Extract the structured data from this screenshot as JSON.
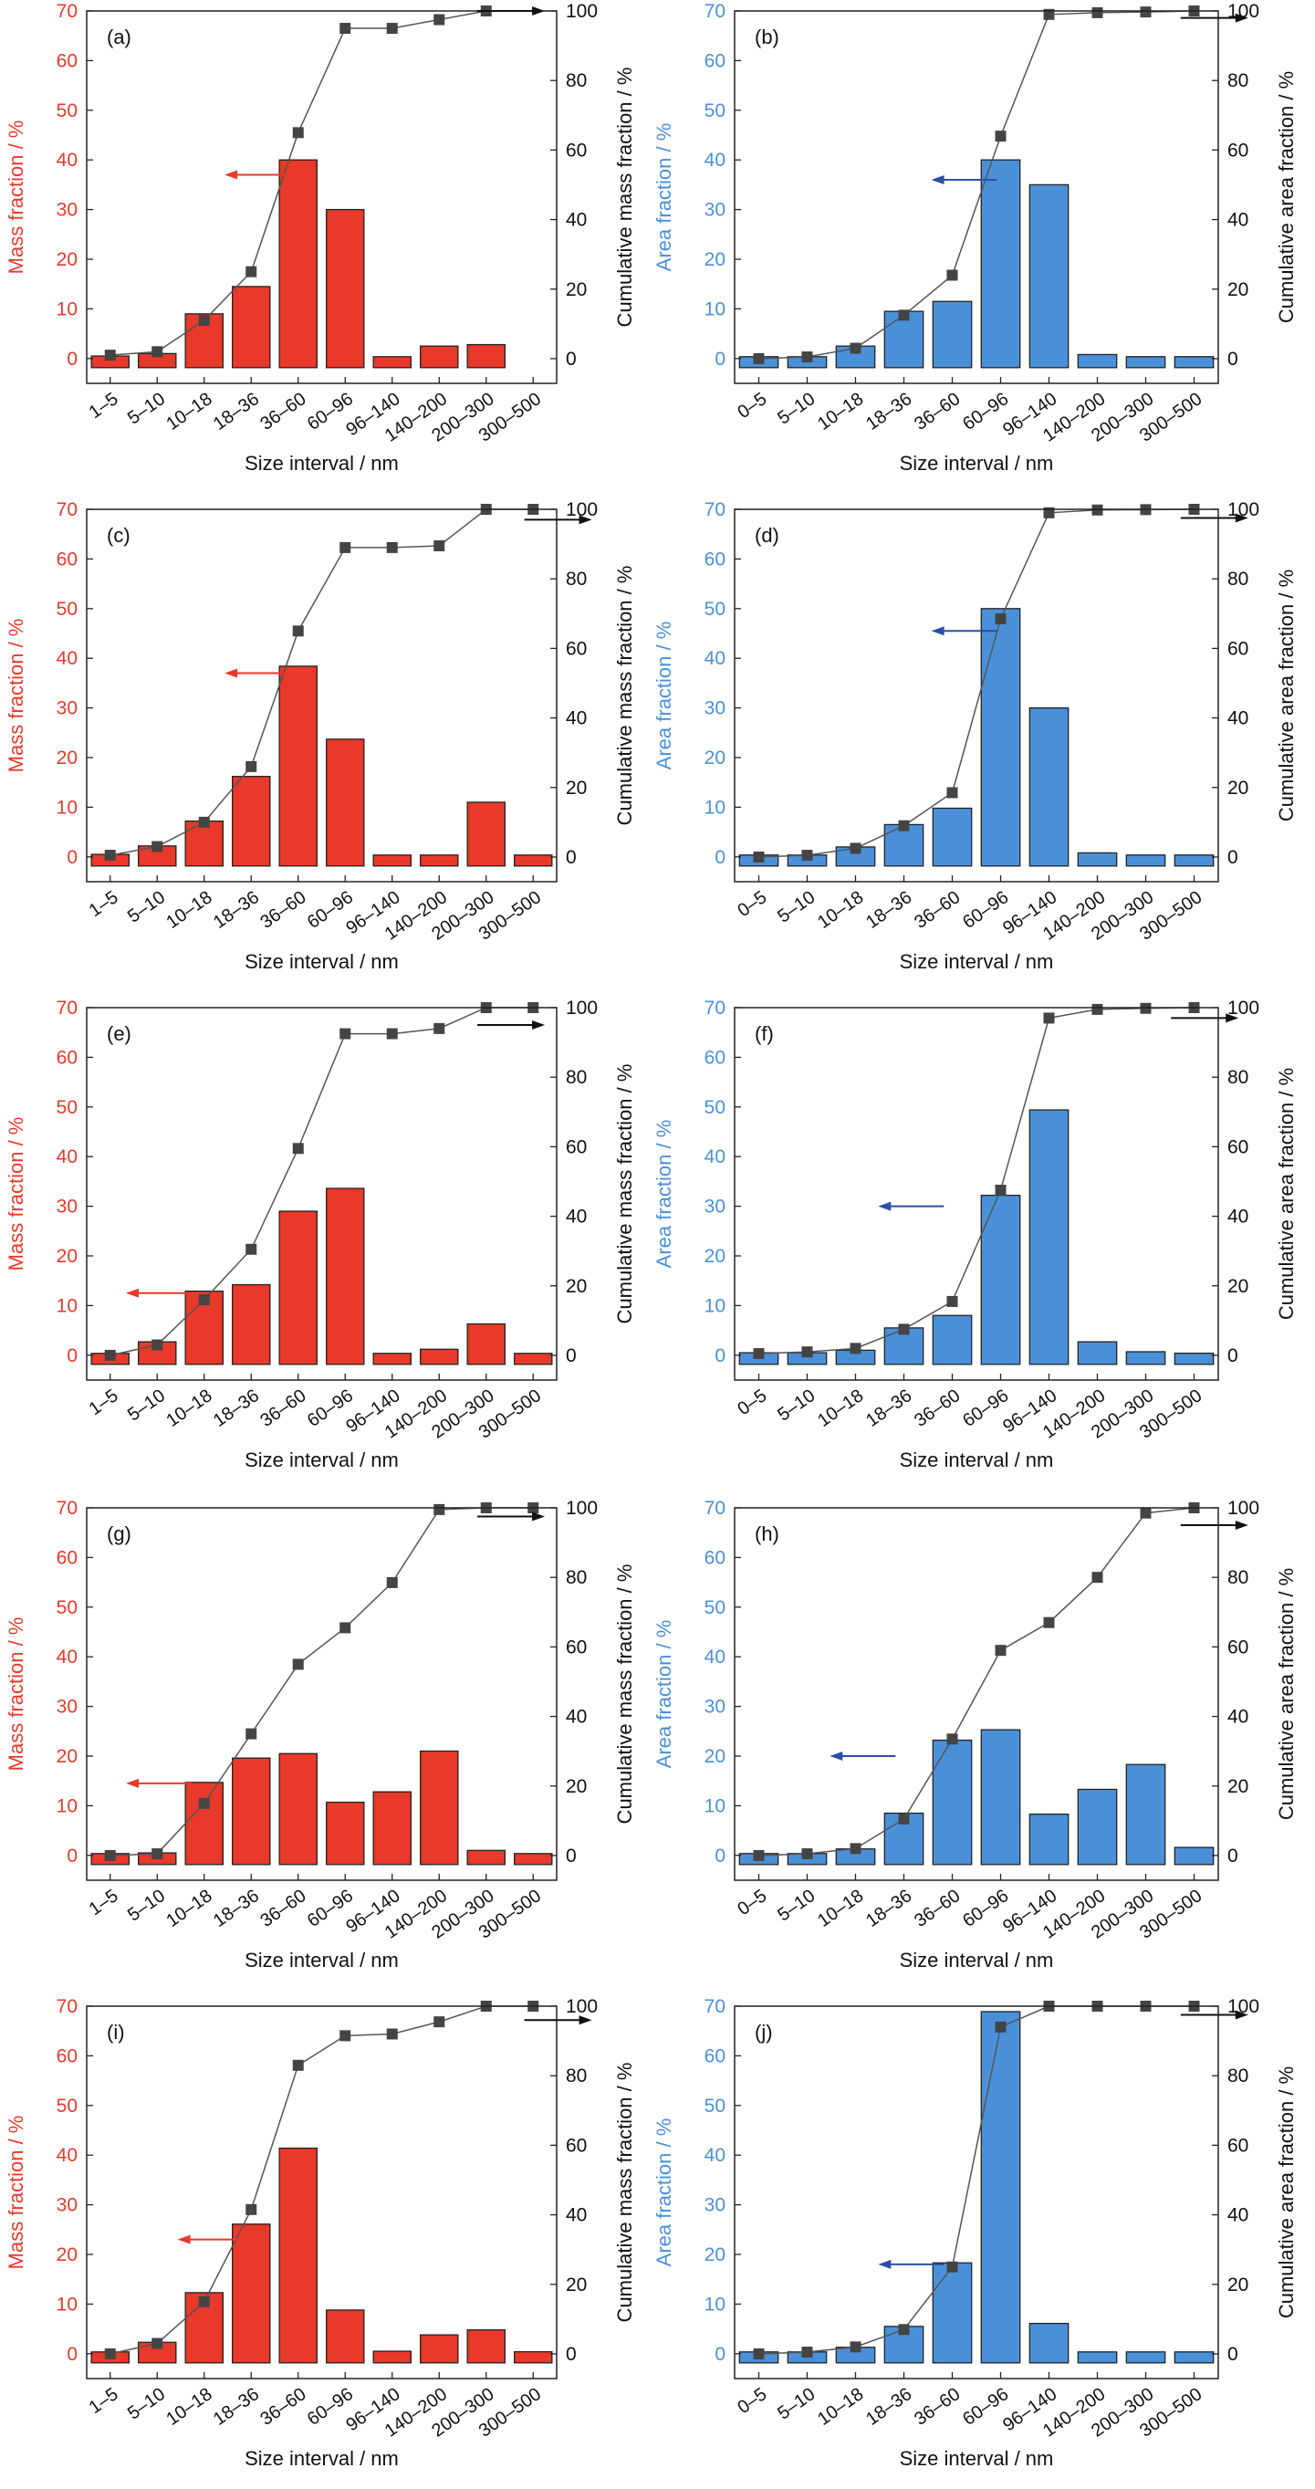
{
  "chart_data": [
    {
      "panel": "(a)",
      "type": "bar",
      "categories": [
        "1–5",
        "5–10",
        "10–18",
        "18–36",
        "36–60",
        "60–96",
        "96–140",
        "140–200",
        "200–300",
        "300–500"
      ],
      "xlabel": "Size interval / nm",
      "ylabel": "Mass fraction / %",
      "y2label": "Cumulative mass fraction / %",
      "ylim": [
        -5,
        70
      ],
      "yticks": [
        0,
        10,
        20,
        30,
        40,
        50,
        60,
        70
      ],
      "y2lim": [
        -7.1,
        100
      ],
      "y2ticks": [
        0,
        20,
        40,
        60,
        80,
        100
      ],
      "bar_color": "#e8392a",
      "label_color": "#e8392a",
      "series": [
        {
          "name": "Mass fraction",
          "axis": "left",
          "values": [
            0.5,
            1,
            9,
            14.5,
            40,
            30,
            0,
            2.5,
            2.8,
            null
          ]
        },
        {
          "name": "Cumulative mass fraction",
          "axis": "right",
          "values": [
            1,
            2,
            11,
            25,
            65,
            95,
            95,
            97.5,
            100,
            null
          ]
        }
      ],
      "left_arrow": {
        "x": 3.6,
        "y": 37
      },
      "right_arrow": {
        "x": 8.2,
        "y": 100
      }
    },
    {
      "panel": "(b)",
      "type": "bar",
      "categories": [
        "0–5",
        "5–10",
        "10–18",
        "18–36",
        "36–60",
        "60–96",
        "96–140",
        "140–200",
        "200–300",
        "300–500"
      ],
      "xlabel": "Size interval / nm",
      "ylabel": "Area fraction / %",
      "y2label": "Cumulative area fraction / %",
      "ylim": [
        -5,
        70
      ],
      "yticks": [
        0,
        10,
        20,
        30,
        40,
        50,
        60,
        70
      ],
      "y2lim": [
        -7.1,
        100
      ],
      "y2ticks": [
        0,
        20,
        40,
        60,
        80,
        100
      ],
      "bar_color": "#4a90d9",
      "label_color": "#4a90d9",
      "series": [
        {
          "name": "Area fraction",
          "axis": "left",
          "values": [
            0,
            0.3,
            2.5,
            9.5,
            11.5,
            40,
            35,
            0.8,
            0.3,
            0.3
          ]
        },
        {
          "name": "Cumulative area fraction",
          "axis": "right",
          "values": [
            0,
            0.5,
            3,
            12.5,
            24,
            64,
            99,
            99.5,
            99.7,
            100
          ]
        }
      ],
      "left_arrow": {
        "x": 4.7,
        "y": 36
      },
      "right_arrow": {
        "x": 9.1,
        "y": 98
      }
    },
    {
      "panel": "(c)",
      "type": "bar",
      "categories": [
        "1–5",
        "5–10",
        "10–18",
        "18–36",
        "36–60",
        "60–96",
        "96–140",
        "140–200",
        "200–300",
        "300–500"
      ],
      "xlabel": "Size interval / nm",
      "ylabel": "Mass fraction / %",
      "y2label": "Cumulative mass fraction / %",
      "ylim": [
        -5,
        70
      ],
      "yticks": [
        0,
        10,
        20,
        30,
        40,
        50,
        60,
        70
      ],
      "y2lim": [
        -7.1,
        100
      ],
      "y2ticks": [
        0,
        20,
        40,
        60,
        80,
        100
      ],
      "bar_color": "#e8392a",
      "label_color": "#e8392a",
      "series": [
        {
          "name": "Mass fraction",
          "axis": "left",
          "values": [
            0.5,
            2.2,
            7.2,
            16.2,
            38.4,
            23.7,
            0.3,
            0.3,
            11,
            0.2
          ]
        },
        {
          "name": "Cumulative mass fraction",
          "axis": "right",
          "values": [
            0.5,
            3,
            10,
            26,
            65,
            89,
            89,
            89.5,
            100,
            100
          ]
        }
      ],
      "left_arrow": {
        "x": 3.6,
        "y": 37
      },
      "right_arrow": {
        "x": 9.2,
        "y": 97
      }
    },
    {
      "panel": "(d)",
      "type": "bar",
      "categories": [
        "0–5",
        "5–10",
        "10–18",
        "18–36",
        "36–60",
        "60–96",
        "96–140",
        "140–200",
        "200–300",
        "300–500"
      ],
      "xlabel": "Size interval / nm",
      "ylabel": "Area fraction / %",
      "y2label": "Cumulative area fraction / %",
      "ylim": [
        -5,
        70
      ],
      "yticks": [
        0,
        10,
        20,
        30,
        40,
        50,
        60,
        70
      ],
      "y2lim": [
        -7.1,
        100
      ],
      "y2ticks": [
        0,
        20,
        40,
        60,
        80,
        100
      ],
      "bar_color": "#4a90d9",
      "label_color": "#4a90d9",
      "series": [
        {
          "name": "Area fraction",
          "axis": "left",
          "values": [
            0,
            0.2,
            2,
            6.5,
            9.8,
            50,
            30,
            0.8,
            0.3,
            0.2
          ]
        },
        {
          "name": "Cumulative area fraction",
          "axis": "right",
          "values": [
            0,
            0.5,
            2.5,
            9,
            18.5,
            68.5,
            99,
            99.8,
            99.9,
            100
          ]
        }
      ],
      "left_arrow": {
        "x": 4.7,
        "y": 45.5
      },
      "right_arrow": {
        "x": 9.1,
        "y": 97.5
      }
    },
    {
      "panel": "(e)",
      "type": "bar",
      "categories": [
        "1–5",
        "5–10",
        "10–18",
        "18–36",
        "36–60",
        "60–96",
        "96–140",
        "140–200",
        "200–300",
        "300–500"
      ],
      "xlabel": "Size interval / nm",
      "ylabel": "Mass fraction / %",
      "y2label": "Cumulative mass fraction / %",
      "ylim": [
        -5,
        70
      ],
      "yticks": [
        0,
        10,
        20,
        30,
        40,
        50,
        60,
        70
      ],
      "y2lim": [
        -7.1,
        100
      ],
      "y2ticks": [
        0,
        20,
        40,
        60,
        80,
        100
      ],
      "bar_color": "#e8392a",
      "label_color": "#e8392a",
      "series": [
        {
          "name": "Mass fraction",
          "axis": "left",
          "values": [
            0.2,
            2.7,
            12.9,
            14.2,
            29,
            33.6,
            0.3,
            1.2,
            6.3,
            0.2
          ]
        },
        {
          "name": "Cumulative mass fraction",
          "axis": "right",
          "values": [
            0,
            3,
            16,
            30.5,
            59.5,
            92.5,
            92.5,
            94,
            100,
            100
          ]
        }
      ],
      "left_arrow": {
        "x": 1.5,
        "y": 12.5
      },
      "right_arrow": {
        "x": 8.2,
        "y": 95
      }
    },
    {
      "panel": "(f)",
      "type": "bar",
      "categories": [
        "0–5",
        "5–10",
        "10–18",
        "18–36",
        "36–60",
        "60–96",
        "96–140",
        "140–200",
        "200–300",
        "300–500"
      ],
      "xlabel": "Size interval / nm",
      "ylabel": "Area fraction / %",
      "y2label": "Cumulative area fraction / %",
      "ylim": [
        -5,
        70
      ],
      "yticks": [
        0,
        10,
        20,
        30,
        40,
        50,
        60,
        70
      ],
      "y2lim": [
        -7.1,
        100
      ],
      "y2ticks": [
        0,
        20,
        40,
        60,
        80,
        100
      ],
      "bar_color": "#4a90d9",
      "label_color": "#4a90d9",
      "series": [
        {
          "name": "Area fraction",
          "axis": "left",
          "values": [
            0.5,
            0.5,
            1,
            5.5,
            8,
            32.2,
            49.4,
            2.7,
            0.7,
            0.4
          ]
        },
        {
          "name": "Cumulative area fraction",
          "axis": "right",
          "values": [
            0.5,
            1,
            2,
            7.5,
            15.5,
            47.5,
            97,
            99.5,
            99.8,
            100
          ]
        }
      ],
      "left_arrow": {
        "x": 3.6,
        "y": 30
      },
      "right_arrow": {
        "x": 8.9,
        "y": 97
      }
    },
    {
      "panel": "(g)",
      "type": "bar",
      "categories": [
        "1–5",
        "5–10",
        "10–18",
        "18–36",
        "36–60",
        "60–96",
        "96–140",
        "140–200",
        "200–300",
        "300–500"
      ],
      "xlabel": "Size interval / nm",
      "ylabel": "Mass fraction / %",
      "y2label": "Cumulative mass fraction / %",
      "ylim": [
        -5,
        70
      ],
      "yticks": [
        0,
        10,
        20,
        30,
        40,
        50,
        60,
        70
      ],
      "y2lim": [
        -7.1,
        100
      ],
      "y2ticks": [
        0,
        20,
        40,
        60,
        80,
        100
      ],
      "bar_color": "#e8392a",
      "label_color": "#e8392a",
      "series": [
        {
          "name": "Mass fraction",
          "axis": "left",
          "values": [
            0.3,
            0.5,
            14.7,
            19.6,
            20.5,
            10.7,
            12.8,
            21,
            1,
            0.2
          ]
        },
        {
          "name": "Cumulative mass fraction",
          "axis": "right",
          "values": [
            0,
            0.5,
            15,
            35,
            55,
            65.5,
            78.5,
            99.5,
            100,
            100
          ]
        }
      ],
      "left_arrow": {
        "x": 1.5,
        "y": 14.5
      },
      "right_arrow": {
        "x": 8.2,
        "y": 97.5
      }
    },
    {
      "panel": "(h)",
      "type": "bar",
      "categories": [
        "0–5",
        "5–10",
        "10–18",
        "18–36",
        "36–60",
        "60–96",
        "96–140",
        "140–200",
        "200–300",
        "300–500"
      ],
      "xlabel": "Size interval / nm",
      "ylabel": "Area fraction / %",
      "y2label": "Cumulative area fraction / %",
      "ylim": [
        -5,
        70
      ],
      "yticks": [
        0,
        10,
        20,
        30,
        40,
        50,
        60,
        70
      ],
      "y2lim": [
        -7.1,
        100
      ],
      "y2ticks": [
        0,
        20,
        40,
        60,
        80,
        100
      ],
      "bar_color": "#4a90d9",
      "label_color": "#4a90d9",
      "series": [
        {
          "name": "Area fraction",
          "axis": "left",
          "values": [
            0.2,
            0.3,
            1.3,
            8.5,
            23.2,
            25.3,
            8.3,
            13.3,
            18.3,
            1.6
          ]
        },
        {
          "name": "Cumulative area fraction",
          "axis": "right",
          "values": [
            0,
            0.5,
            2,
            10.5,
            33.5,
            59,
            67,
            80,
            98.5,
            100
          ]
        }
      ],
      "left_arrow": {
        "x": 2.6,
        "y": 20
      },
      "right_arrow": {
        "x": 9.1,
        "y": 95
      }
    },
    {
      "panel": "(i)",
      "type": "bar",
      "categories": [
        "1–5",
        "5–10",
        "10–18",
        "18–36",
        "36–60",
        "60–96",
        "96–140",
        "140–200",
        "200–300",
        "300–500"
      ],
      "xlabel": "Size interval / nm",
      "ylabel": "Mass fraction / %",
      "y2label": "Cumulative mass fraction / %",
      "ylim": [
        -5,
        70
      ],
      "yticks": [
        0,
        10,
        20,
        30,
        40,
        50,
        60,
        70
      ],
      "y2lim": [
        -7.1,
        100
      ],
      "y2ticks": [
        0,
        20,
        40,
        60,
        80,
        100
      ],
      "bar_color": "#e8392a",
      "label_color": "#e8392a",
      "series": [
        {
          "name": "Mass fraction",
          "axis": "left",
          "values": [
            0.3,
            2.3,
            12.3,
            26.1,
            41.4,
            8.8,
            0.5,
            3.8,
            4.8,
            0.4
          ]
        },
        {
          "name": "Cumulative mass fraction",
          "axis": "right",
          "values": [
            0,
            3,
            15,
            41.5,
            83,
            91.5,
            92,
            95.5,
            100,
            100
          ]
        }
      ],
      "left_arrow": {
        "x": 2.6,
        "y": 23
      },
      "right_arrow": {
        "x": 9.2,
        "y": 96
      }
    },
    {
      "panel": "(j)",
      "type": "bar",
      "categories": [
        "0–5",
        "5–10",
        "10–18",
        "18–36",
        "36–60",
        "60–96",
        "96–140",
        "140–200",
        "200–300",
        "300–500"
      ],
      "xlabel": "Size interval / nm",
      "ylabel": "Area fraction / %",
      "y2label": "Cumulative area fraction / %",
      "ylim": [
        -5,
        70
      ],
      "yticks": [
        0,
        10,
        20,
        30,
        40,
        50,
        60,
        70
      ],
      "y2lim": [
        -7.1,
        100
      ],
      "y2ticks": [
        0,
        20,
        40,
        60,
        80,
        100
      ],
      "bar_color": "#4a90d9",
      "label_color": "#4a90d9",
      "series": [
        {
          "name": "Area fraction",
          "axis": "left",
          "values": [
            0.3,
            0.3,
            1.3,
            5.5,
            18.3,
            68.9,
            6.1,
            0.3,
            0.3,
            0.3
          ]
        },
        {
          "name": "Cumulative area fraction",
          "axis": "right",
          "values": [
            0,
            0.5,
            2,
            7,
            25,
            94,
            100,
            100,
            100,
            100
          ]
        }
      ],
      "left_arrow": {
        "x": 3.6,
        "y": 18
      },
      "right_arrow": {
        "x": 9.1,
        "y": 97.5
      }
    }
  ]
}
